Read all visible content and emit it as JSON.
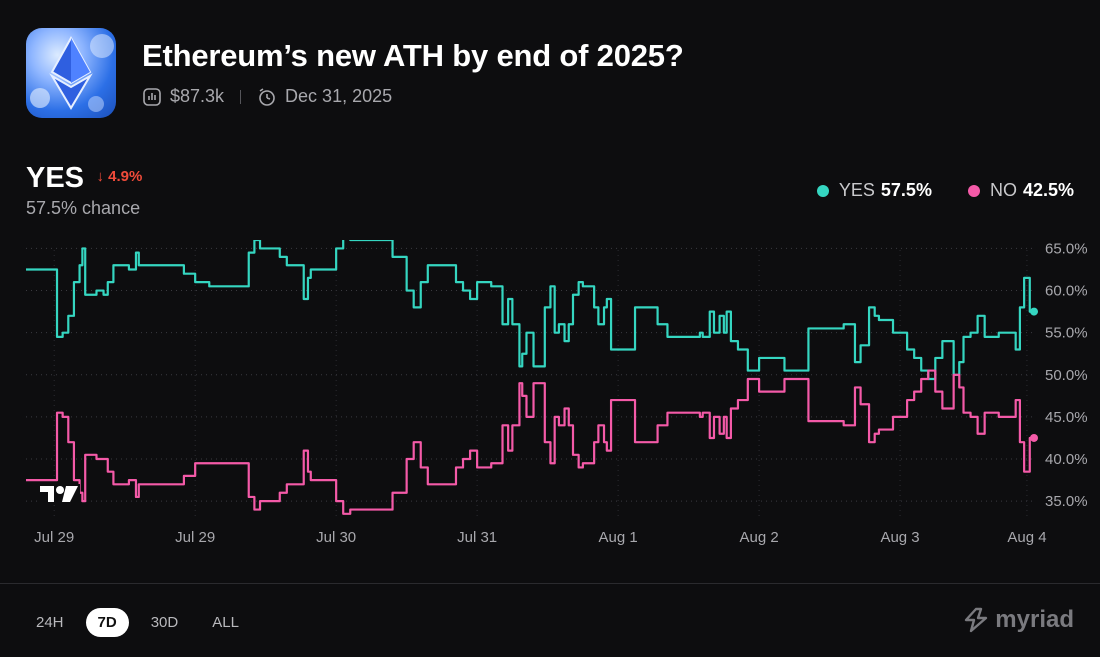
{
  "market": {
    "title": "Ethereum’s new ATH by end of 2025?",
    "volume": "$87.3k",
    "end_date": "Dec 31, 2025",
    "logo_icon": "ethereum-logo-icon",
    "volume_icon": "volume-chart-icon",
    "clock_icon": "clock-icon"
  },
  "outcome": {
    "label": "YES",
    "change": "↓ 4.9%",
    "chance": "57.5% chance"
  },
  "legend": [
    {
      "name": "YES",
      "value": "57.5%",
      "color": "#35d6c1"
    },
    {
      "name": "NO",
      "value": "42.5%",
      "color": "#f45aa8"
    }
  ],
  "timeframes": [
    {
      "label": "24H",
      "active": false
    },
    {
      "label": "7D",
      "active": true
    },
    {
      "label": "30D",
      "active": false
    },
    {
      "label": "ALL",
      "active": false
    }
  ],
  "brand": {
    "name": "myriad",
    "icon": "myriad-logo-icon"
  },
  "chart_data": {
    "type": "line",
    "x_tick_labels": [
      "Jul 29",
      "Jul 29",
      "Jul 30",
      "Jul 31",
      "Aug 1",
      "Aug 2",
      "Aug 3",
      "Aug 4"
    ],
    "x_ticks": [
      0.2,
      1.2,
      2.2,
      3.2,
      4.2,
      5.2,
      6.2,
      7.1
    ],
    "xlim": [
      0,
      7.15
    ],
    "ylim": [
      33,
      66
    ],
    "y_ticks": [
      35,
      40,
      45,
      50,
      55,
      60,
      65
    ],
    "y_tick_labels": [
      "35.0%",
      "40.0%",
      "45.0%",
      "50.0%",
      "55.0%",
      "60.0%",
      "65.0%"
    ],
    "grid": true,
    "legend_position": "top-right",
    "series": [
      {
        "name": "YES",
        "color": "#35d6c1",
        "points": [
          [
            0,
            62.5
          ],
          [
            0.2,
            62.5
          ],
          [
            0.22,
            54.5
          ],
          [
            0.26,
            55
          ],
          [
            0.3,
            57
          ],
          [
            0.34,
            61
          ],
          [
            0.38,
            63
          ],
          [
            0.4,
            65
          ],
          [
            0.42,
            59.5
          ],
          [
            0.5,
            60
          ],
          [
            0.55,
            59.5
          ],
          [
            0.58,
            61
          ],
          [
            0.62,
            63
          ],
          [
            0.7,
            63
          ],
          [
            0.73,
            62.5
          ],
          [
            0.78,
            64.5
          ],
          [
            0.8,
            63
          ],
          [
            0.9,
            63
          ],
          [
            1.0,
            63
          ],
          [
            1.1,
            63
          ],
          [
            1.12,
            62
          ],
          [
            1.2,
            61
          ],
          [
            1.3,
            60.5
          ],
          [
            1.5,
            60.5
          ],
          [
            1.55,
            60.5
          ],
          [
            1.58,
            64.5
          ],
          [
            1.62,
            66
          ],
          [
            1.66,
            65
          ],
          [
            1.75,
            65
          ],
          [
            1.8,
            64
          ],
          [
            1.85,
            63
          ],
          [
            1.9,
            63
          ],
          [
            1.95,
            63
          ],
          [
            1.97,
            59
          ],
          [
            2.0,
            61.5
          ],
          [
            2.02,
            62.5
          ],
          [
            2.1,
            62.5
          ],
          [
            2.15,
            62.5
          ],
          [
            2.2,
            65
          ],
          [
            2.25,
            66.5
          ],
          [
            2.3,
            66
          ],
          [
            2.35,
            66
          ],
          [
            2.55,
            66
          ],
          [
            2.6,
            64
          ],
          [
            2.65,
            64
          ],
          [
            2.7,
            60
          ],
          [
            2.75,
            58
          ],
          [
            2.8,
            61
          ],
          [
            2.85,
            63
          ],
          [
            2.9,
            63
          ],
          [
            3.0,
            63
          ],
          [
            3.05,
            61
          ],
          [
            3.1,
            60
          ],
          [
            3.15,
            59
          ],
          [
            3.2,
            61
          ],
          [
            3.25,
            61
          ],
          [
            3.3,
            60.5
          ],
          [
            3.35,
            60.5
          ],
          [
            3.38,
            56
          ],
          [
            3.42,
            59
          ],
          [
            3.45,
            56
          ],
          [
            3.5,
            51
          ],
          [
            3.52,
            52.5
          ],
          [
            3.55,
            55
          ],
          [
            3.58,
            55
          ],
          [
            3.6,
            51
          ],
          [
            3.65,
            51
          ],
          [
            3.68,
            58
          ],
          [
            3.72,
            60.5
          ],
          [
            3.75,
            55
          ],
          [
            3.78,
            56
          ],
          [
            3.82,
            54
          ],
          [
            3.85,
            56
          ],
          [
            3.88,
            59.5
          ],
          [
            3.92,
            61
          ],
          [
            3.95,
            60.5
          ],
          [
            4.0,
            60.5
          ],
          [
            4.03,
            58
          ],
          [
            4.06,
            56
          ],
          [
            4.1,
            58
          ],
          [
            4.12,
            59
          ],
          [
            4.15,
            53
          ],
          [
            4.2,
            53
          ],
          [
            4.25,
            53
          ],
          [
            4.3,
            53
          ],
          [
            4.32,
            58
          ],
          [
            4.4,
            58
          ],
          [
            4.45,
            58
          ],
          [
            4.48,
            56
          ],
          [
            4.52,
            56
          ],
          [
            4.55,
            54.5
          ],
          [
            4.65,
            54.5
          ],
          [
            4.75,
            54.5
          ],
          [
            4.78,
            55
          ],
          [
            4.8,
            54.5
          ],
          [
            4.85,
            57.5
          ],
          [
            4.88,
            55
          ],
          [
            4.92,
            57
          ],
          [
            4.95,
            55
          ],
          [
            4.97,
            57.5
          ],
          [
            5.0,
            54
          ],
          [
            5.05,
            53
          ],
          [
            5.1,
            53
          ],
          [
            5.12,
            50.5
          ],
          [
            5.2,
            52
          ],
          [
            5.3,
            52
          ],
          [
            5.35,
            52
          ],
          [
            5.38,
            50.5
          ],
          [
            5.45,
            50.5
          ],
          [
            5.5,
            50.5
          ],
          [
            5.55,
            55.5
          ],
          [
            5.6,
            55.5
          ],
          [
            5.7,
            55.5
          ],
          [
            5.8,
            56
          ],
          [
            5.85,
            56
          ],
          [
            5.88,
            51.5
          ],
          [
            5.92,
            53.5
          ],
          [
            5.96,
            53.5
          ],
          [
            5.98,
            58
          ],
          [
            6.02,
            57
          ],
          [
            6.05,
            56.5
          ],
          [
            6.1,
            56.5
          ],
          [
            6.15,
            55
          ],
          [
            6.2,
            55
          ],
          [
            6.25,
            53
          ],
          [
            6.3,
            52
          ],
          [
            6.35,
            50.5
          ],
          [
            6.4,
            49.5
          ],
          [
            6.45,
            52
          ],
          [
            6.5,
            54
          ],
          [
            6.55,
            54
          ],
          [
            6.58,
            50
          ],
          [
            6.62,
            51.5
          ],
          [
            6.65,
            54.5
          ],
          [
            6.7,
            55
          ],
          [
            6.75,
            57
          ],
          [
            6.8,
            54.5
          ],
          [
            6.85,
            54.5
          ],
          [
            6.9,
            55
          ],
          [
            7.0,
            55
          ],
          [
            7.02,
            53
          ],
          [
            7.05,
            58
          ],
          [
            7.08,
            61.5
          ],
          [
            7.12,
            57.5
          ],
          [
            7.15,
            57.5
          ]
        ]
      },
      {
        "name": "NO",
        "color": "#f45aa8",
        "points": [
          [
            0,
            37.5
          ],
          [
            0.2,
            37.5
          ],
          [
            0.22,
            45.5
          ],
          [
            0.26,
            45
          ],
          [
            0.3,
            42
          ],
          [
            0.34,
            37.5
          ],
          [
            0.38,
            36
          ],
          [
            0.4,
            35
          ],
          [
            0.42,
            40.5
          ],
          [
            0.5,
            40
          ],
          [
            0.55,
            40
          ],
          [
            0.58,
            38.5
          ],
          [
            0.62,
            37
          ],
          [
            0.7,
            37
          ],
          [
            0.73,
            37.5
          ],
          [
            0.78,
            35.5
          ],
          [
            0.8,
            37
          ],
          [
            0.9,
            37
          ],
          [
            1.0,
            37
          ],
          [
            1.1,
            37
          ],
          [
            1.12,
            38
          ],
          [
            1.2,
            39.5
          ],
          [
            1.3,
            39.5
          ],
          [
            1.5,
            39.5
          ],
          [
            1.55,
            39.5
          ],
          [
            1.58,
            35.5
          ],
          [
            1.62,
            34
          ],
          [
            1.66,
            35
          ],
          [
            1.75,
            35
          ],
          [
            1.8,
            36
          ],
          [
            1.85,
            37
          ],
          [
            1.9,
            37
          ],
          [
            1.95,
            37
          ],
          [
            1.97,
            41
          ],
          [
            2.0,
            38.5
          ],
          [
            2.02,
            37.5
          ],
          [
            2.1,
            37.5
          ],
          [
            2.15,
            37.5
          ],
          [
            2.2,
            35
          ],
          [
            2.25,
            33.5
          ],
          [
            2.3,
            34
          ],
          [
            2.35,
            34
          ],
          [
            2.55,
            34
          ],
          [
            2.6,
            36
          ],
          [
            2.65,
            36
          ],
          [
            2.7,
            40
          ],
          [
            2.75,
            42
          ],
          [
            2.8,
            39
          ],
          [
            2.85,
            37
          ],
          [
            2.9,
            37
          ],
          [
            3.0,
            37
          ],
          [
            3.05,
            39
          ],
          [
            3.1,
            40
          ],
          [
            3.15,
            41
          ],
          [
            3.2,
            39
          ],
          [
            3.25,
            39
          ],
          [
            3.3,
            39.5
          ],
          [
            3.35,
            39.5
          ],
          [
            3.38,
            44
          ],
          [
            3.42,
            41
          ],
          [
            3.45,
            44
          ],
          [
            3.5,
            49
          ],
          [
            3.52,
            47.5
          ],
          [
            3.55,
            45
          ],
          [
            3.58,
            45
          ],
          [
            3.6,
            49
          ],
          [
            3.65,
            49
          ],
          [
            3.68,
            42
          ],
          [
            3.72,
            39.5
          ],
          [
            3.75,
            45
          ],
          [
            3.78,
            44
          ],
          [
            3.82,
            46
          ],
          [
            3.85,
            44
          ],
          [
            3.88,
            40.5
          ],
          [
            3.92,
            39
          ],
          [
            3.95,
            39.5
          ],
          [
            4.0,
            39.5
          ],
          [
            4.03,
            42
          ],
          [
            4.06,
            44
          ],
          [
            4.1,
            42
          ],
          [
            4.12,
            41
          ],
          [
            4.15,
            47
          ],
          [
            4.2,
            47
          ],
          [
            4.25,
            47
          ],
          [
            4.3,
            47
          ],
          [
            4.32,
            42
          ],
          [
            4.4,
            42
          ],
          [
            4.45,
            42
          ],
          [
            4.48,
            44
          ],
          [
            4.52,
            44
          ],
          [
            4.55,
            45.5
          ],
          [
            4.65,
            45.5
          ],
          [
            4.75,
            45.5
          ],
          [
            4.78,
            45
          ],
          [
            4.8,
            45.5
          ],
          [
            4.85,
            42.5
          ],
          [
            4.88,
            45
          ],
          [
            4.92,
            43
          ],
          [
            4.95,
            45
          ],
          [
            4.97,
            42.5
          ],
          [
            5.0,
            46
          ],
          [
            5.05,
            47
          ],
          [
            5.1,
            47
          ],
          [
            5.12,
            49.5
          ],
          [
            5.2,
            48
          ],
          [
            5.3,
            48
          ],
          [
            5.35,
            48
          ],
          [
            5.38,
            49.5
          ],
          [
            5.45,
            49.5
          ],
          [
            5.5,
            49.5
          ],
          [
            5.55,
            44.5
          ],
          [
            5.6,
            44.5
          ],
          [
            5.7,
            44.5
          ],
          [
            5.8,
            44
          ],
          [
            5.85,
            44
          ],
          [
            5.88,
            48.5
          ],
          [
            5.92,
            46.5
          ],
          [
            5.96,
            46.5
          ],
          [
            5.98,
            42
          ],
          [
            6.02,
            43
          ],
          [
            6.05,
            43.5
          ],
          [
            6.1,
            43.5
          ],
          [
            6.15,
            45
          ],
          [
            6.2,
            45
          ],
          [
            6.25,
            47
          ],
          [
            6.3,
            48
          ],
          [
            6.35,
            49.5
          ],
          [
            6.4,
            50.5
          ],
          [
            6.45,
            48
          ],
          [
            6.5,
            46
          ],
          [
            6.55,
            46
          ],
          [
            6.58,
            50
          ],
          [
            6.62,
            48.5
          ],
          [
            6.65,
            45.5
          ],
          [
            6.7,
            45
          ],
          [
            6.75,
            43
          ],
          [
            6.8,
            45.5
          ],
          [
            6.85,
            45.5
          ],
          [
            6.9,
            45
          ],
          [
            7.0,
            45
          ],
          [
            7.02,
            47
          ],
          [
            7.05,
            42
          ],
          [
            7.08,
            38.5
          ],
          [
            7.12,
            42.5
          ],
          [
            7.15,
            42.5
          ]
        ]
      }
    ]
  }
}
